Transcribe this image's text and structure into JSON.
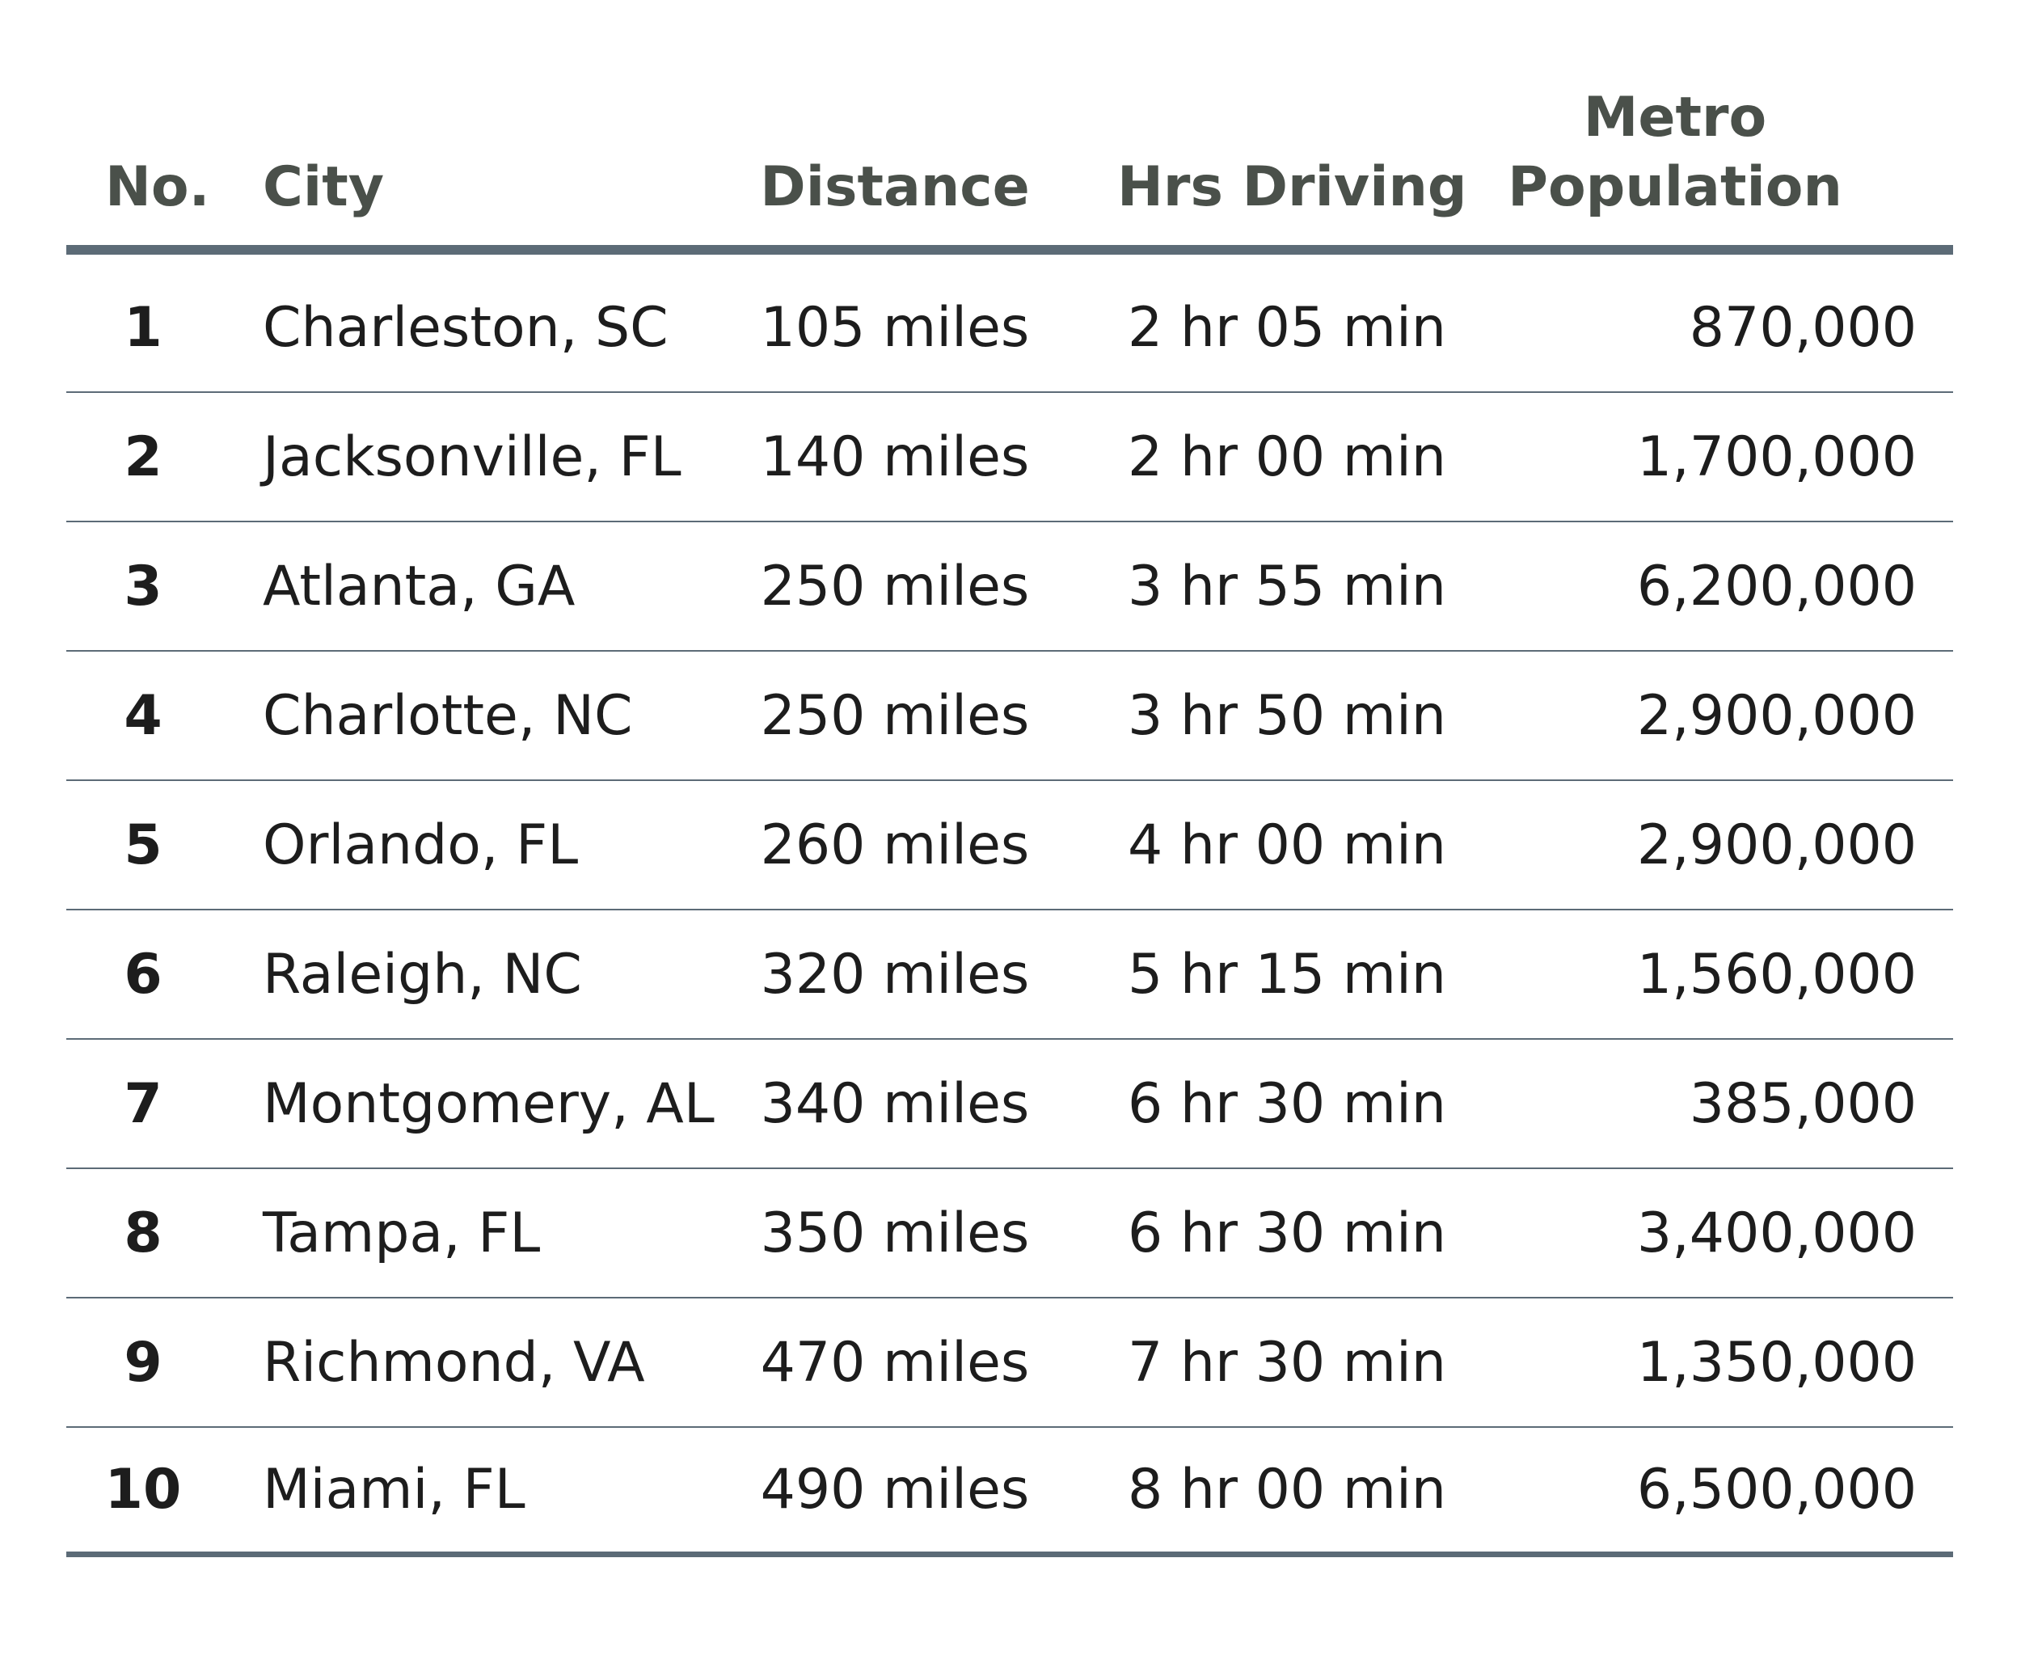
{
  "chart_data": {
    "type": "table",
    "columns": [
      "No.",
      "City",
      "Distance",
      "Hrs Driving",
      "Metro Population"
    ],
    "header": {
      "no": "No.",
      "city": "City",
      "distance": "Distance",
      "hrs_driving": "Hrs Driving",
      "metro_population_line1": "Metro",
      "metro_population_line2": "Population"
    },
    "rows": [
      {
        "no": "1",
        "city": "Charleston, SC",
        "distance": "105 miles",
        "hrs": "2 hr 05 min",
        "population": "870,000"
      },
      {
        "no": "2",
        "city": "Jacksonville, FL",
        "distance": "140 miles",
        "hrs": "2 hr 00 min",
        "population": "1,700,000"
      },
      {
        "no": "3",
        "city": "Atlanta, GA",
        "distance": "250 miles",
        "hrs": "3 hr 55 min",
        "population": "6,200,000"
      },
      {
        "no": "4",
        "city": "Charlotte, NC",
        "distance": "250 miles",
        "hrs": "3 hr 50 min",
        "population": "2,900,000"
      },
      {
        "no": "5",
        "city": "Orlando, FL",
        "distance": "260 miles",
        "hrs": "4 hr 00 min",
        "population": "2,900,000"
      },
      {
        "no": "6",
        "city": "Raleigh, NC",
        "distance": "320 miles",
        "hrs": "5 hr 15 min",
        "population": "1,560,000"
      },
      {
        "no": "7",
        "city": "Montgomery, AL",
        "distance": "340 miles",
        "hrs": "6 hr 30 min",
        "population": "385,000"
      },
      {
        "no": "8",
        "city": "Tampa, FL",
        "distance": "350 miles",
        "hrs": "6 hr 30 min",
        "population": "3,400,000"
      },
      {
        "no": "9",
        "city": "Richmond, VA",
        "distance": "470 miles",
        "hrs": "7 hr 30 min",
        "population": "1,350,000"
      },
      {
        "no": "10",
        "city": "Miami, FL",
        "distance": "490 miles",
        "hrs": "8 hr 00 min",
        "population": "6,500,000"
      }
    ]
  },
  "colors": {
    "header_text": "#4a504a",
    "rule": "#5c6b77",
    "body_text": "#1d1d1d"
  }
}
